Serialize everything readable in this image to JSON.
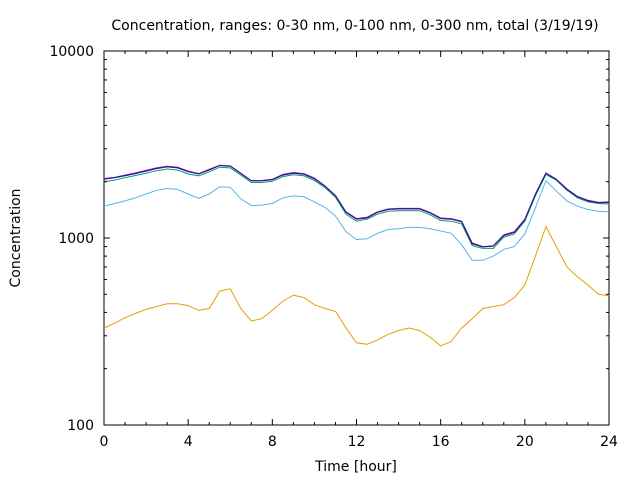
{
  "chart_data": {
    "type": "line",
    "title": "Concentration, ranges: 0-30 nm, 0-100 nm, 0-300 nm, total (3/19/19)",
    "xlabel": "Time [hour]",
    "ylabel": "Concentration",
    "xlim": [
      0,
      24
    ],
    "ylim": [
      100,
      10000
    ],
    "yscale": "log",
    "grid": false,
    "legend": "none",
    "x_ticks": [
      0,
      4,
      8,
      12,
      16,
      20,
      24
    ],
    "x_tick_labels": [
      "0",
      "4",
      "8",
      "12",
      "16",
      "20",
      "24"
    ],
    "y_ticks": [
      100,
      1000,
      10000
    ],
    "y_tick_labels": [
      "100",
      "1000",
      "10000"
    ],
    "x": [
      0,
      0.5,
      1,
      1.5,
      2,
      2.5,
      3,
      3.5,
      4,
      4.5,
      5,
      5.5,
      6,
      6.5,
      7,
      7.5,
      8,
      8.5,
      9,
      9.5,
      10,
      10.5,
      11,
      11.5,
      12,
      12.5,
      13,
      13.5,
      14,
      14.5,
      15,
      15.5,
      16,
      16.5,
      17,
      17.5,
      18,
      18.5,
      19,
      19.5,
      20,
      20.5,
      21,
      21.5,
      22,
      22.5,
      23,
      23.5,
      24
    ],
    "series": [
      {
        "color": "#e69f00",
        "values": [
          330,
          350,
          375,
          395,
          415,
          430,
          445,
          445,
          435,
          410,
          420,
          520,
          535,
          420,
          360,
          370,
          410,
          460,
          495,
          480,
          440,
          420,
          405,
          330,
          275,
          270,
          285,
          305,
          320,
          330,
          320,
          295,
          265,
          280,
          330,
          370,
          420,
          430,
          440,
          480,
          560,
          800,
          1150,
          900,
          700,
          620,
          560,
          500,
          490
        ]
      },
      {
        "color": "#56b4e9",
        "values": [
          1480,
          1530,
          1580,
          1640,
          1720,
          1800,
          1840,
          1820,
          1720,
          1630,
          1720,
          1880,
          1870,
          1620,
          1490,
          1500,
          1530,
          1640,
          1680,
          1660,
          1560,
          1460,
          1310,
          1080,
          980,
          990,
          1060,
          1110,
          1120,
          1140,
          1140,
          1120,
          1090,
          1060,
          920,
          760,
          760,
          800,
          870,
          900,
          1050,
          1450,
          2030,
          1780,
          1580,
          1480,
          1420,
          1390,
          1380
        ]
      },
      {
        "color": "#009e73",
        "values": [
          2000,
          2040,
          2100,
          2160,
          2220,
          2290,
          2340,
          2310,
          2200,
          2150,
          2260,
          2390,
          2370,
          2170,
          1980,
          1980,
          2010,
          2130,
          2180,
          2150,
          2030,
          1860,
          1650,
          1340,
          1230,
          1260,
          1340,
          1390,
          1400,
          1400,
          1400,
          1330,
          1240,
          1230,
          1190,
          910,
          880,
          880,
          1010,
          1050,
          1230,
          1680,
          2180,
          2040,
          1800,
          1640,
          1560,
          1530,
          1520
        ]
      },
      {
        "color": "#9400d3",
        "values": [
          2080,
          2110,
          2170,
          2230,
          2300,
          2370,
          2420,
          2390,
          2280,
          2210,
          2330,
          2450,
          2430,
          2220,
          2030,
          2030,
          2060,
          2190,
          2240,
          2210,
          2090,
          1900,
          1690,
          1380,
          1270,
          1290,
          1380,
          1430,
          1440,
          1440,
          1440,
          1370,
          1280,
          1270,
          1230,
          940,
          900,
          910,
          1040,
          1080,
          1260,
          1720,
          2230,
          2060,
          1830,
          1670,
          1590,
          1550,
          1560
        ]
      },
      {
        "color": "#1f1f7a",
        "values": [
          2060,
          2100,
          2150,
          2210,
          2280,
          2350,
          2400,
          2370,
          2260,
          2200,
          2310,
          2440,
          2420,
          2210,
          2020,
          2020,
          2050,
          2170,
          2220,
          2190,
          2070,
          1890,
          1680,
          1370,
          1260,
          1280,
          1370,
          1420,
          1430,
          1430,
          1430,
          1360,
          1270,
          1260,
          1220,
          930,
          895,
          905,
          1030,
          1070,
          1250,
          1710,
          2220,
          2050,
          1820,
          1660,
          1580,
          1540,
          1550
        ]
      }
    ]
  }
}
